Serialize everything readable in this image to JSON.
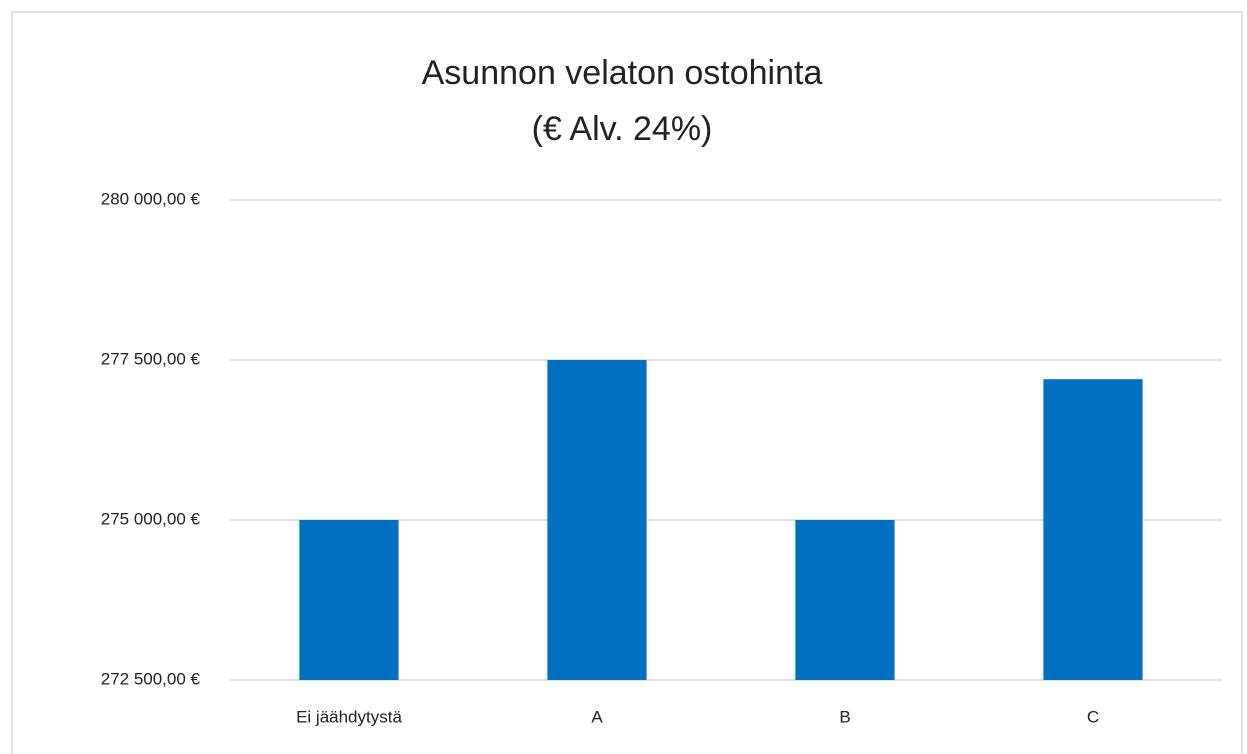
{
  "chart_data": {
    "type": "bar",
    "title": "Asunnon velaton ostohinta",
    "subtitle": "(€ Alv. 24%)",
    "categories": [
      "Ei jäähdytystä",
      "A",
      "B",
      "C"
    ],
    "values": [
      275000,
      277500,
      275000,
      277200
    ],
    "color": "#0070c0",
    "ylim": [
      272500,
      280000
    ],
    "yticks": [
      {
        "value": 272500,
        "label": "272 500,00 €"
      },
      {
        "value": 275000,
        "label": "275 000,00 €"
      },
      {
        "value": 277500,
        "label": "277 500,00 €"
      },
      {
        "value": 280000,
        "label": "280 000,00 €"
      }
    ],
    "grid": true
  }
}
